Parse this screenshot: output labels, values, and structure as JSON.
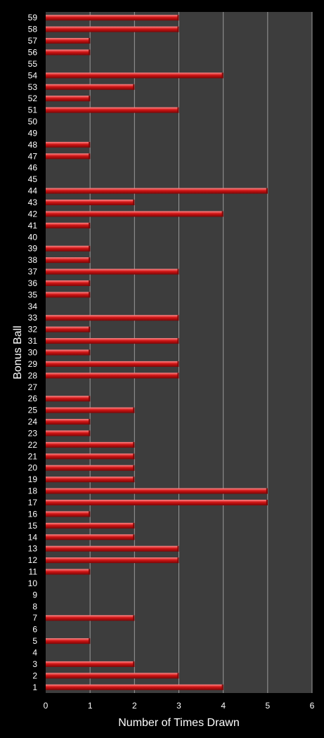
{
  "chart_data": {
    "type": "bar",
    "orientation": "horizontal",
    "xlabel": "Number of Times Drawn",
    "ylabel": "Bonus Ball",
    "xlim": [
      0,
      6
    ],
    "x_ticks": [
      "0",
      "1",
      "2",
      "3",
      "4",
      "5",
      "6"
    ],
    "grid": "vertical",
    "legend": "none",
    "categories": [
      "1",
      "2",
      "3",
      "4",
      "5",
      "6",
      "7",
      "8",
      "9",
      "10",
      "11",
      "12",
      "13",
      "14",
      "15",
      "16",
      "17",
      "18",
      "19",
      "20",
      "21",
      "22",
      "23",
      "24",
      "25",
      "26",
      "27",
      "28",
      "29",
      "30",
      "31",
      "32",
      "33",
      "34",
      "35",
      "36",
      "37",
      "38",
      "39",
      "40",
      "41",
      "42",
      "43",
      "44",
      "45",
      "46",
      "47",
      "48",
      "49",
      "50",
      "51",
      "52",
      "53",
      "54",
      "55",
      "56",
      "57",
      "58",
      "59"
    ],
    "values": [
      4,
      3,
      2,
      0,
      1,
      0,
      2,
      0,
      0,
      0,
      1,
      3,
      3,
      2,
      2,
      1,
      5,
      5,
      2,
      2,
      2,
      2,
      1,
      1,
      2,
      1,
      0,
      3,
      3,
      1,
      3,
      1,
      3,
      0,
      1,
      1,
      3,
      1,
      1,
      0,
      1,
      4,
      2,
      5,
      0,
      0,
      1,
      1,
      0,
      0,
      3,
      1,
      2,
      4,
      0,
      1,
      1,
      3,
      3
    ],
    "colors": {
      "background": "#000000",
      "plot_area": "#3d3d3d",
      "gridline": "#9a9a9a",
      "bar": "#d11414",
      "bar_highlight": "#ff8a8a",
      "bar_shadow": "#7a0606",
      "text": "#ffffff"
    }
  }
}
